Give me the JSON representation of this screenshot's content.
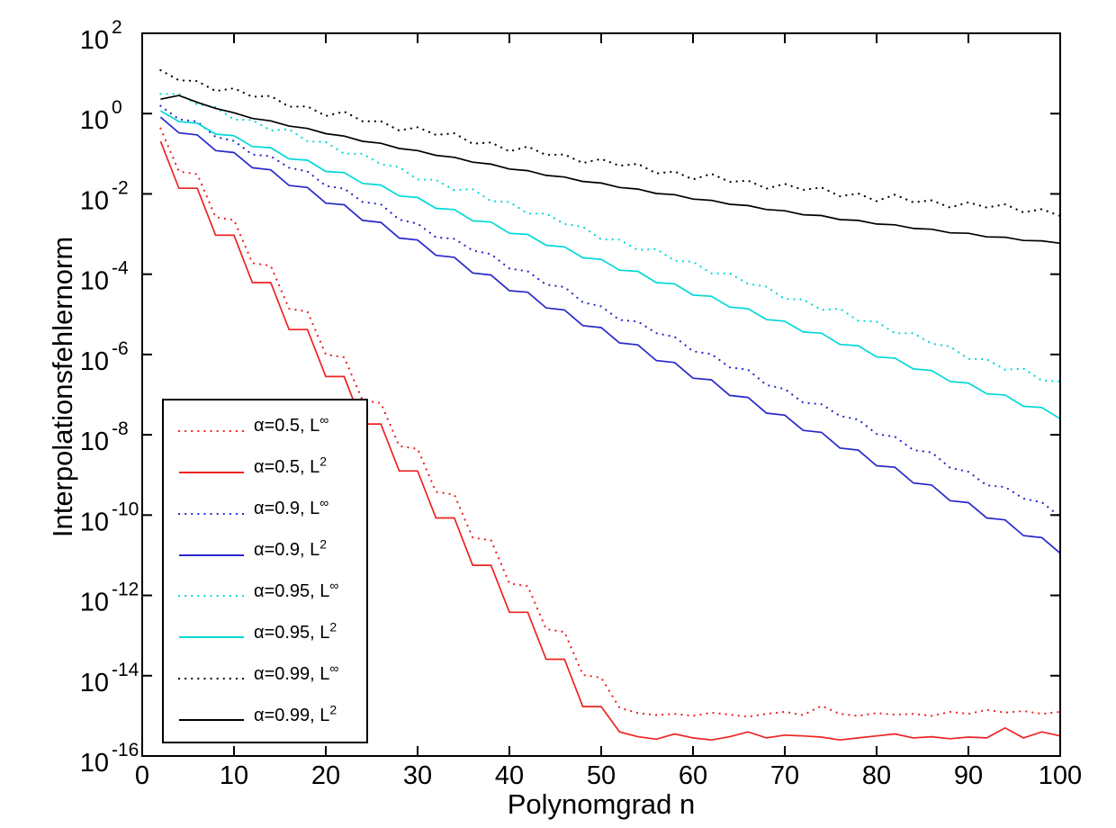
{
  "figure": {
    "background": "#ffffff"
  },
  "axes": {
    "xlabel": "Polynomgrad n",
    "ylabel": "Interpolationsfehlernorm",
    "xlim": [
      0,
      100
    ],
    "x_ticks": [
      0,
      10,
      20,
      30,
      40,
      50,
      60,
      70,
      80,
      90,
      100
    ],
    "y_scale": "log10",
    "ylim_exp": [
      -16,
      2
    ],
    "y_tick_exponents": [
      2,
      0,
      -2,
      -4,
      -6,
      -8,
      -10,
      -12,
      -14,
      -16
    ],
    "tick_base": "10",
    "box": true,
    "grid": false,
    "axis_color": "#000000"
  },
  "legend": {
    "position": "lower-left",
    "border_color": "#000000",
    "background": "#ffffff"
  },
  "chart_data": {
    "type": "line",
    "title": "",
    "xlabel": "Polynomgrad n",
    "ylabel": "Interpolationsfehlernorm",
    "xlim": [
      0,
      100
    ],
    "ylim": [
      1e-16,
      100
    ],
    "y_scale": "log",
    "value_encoding": "log10_of_error_norm",
    "x": [
      2,
      4,
      6,
      8,
      10,
      12,
      14,
      16,
      18,
      20,
      22,
      24,
      26,
      28,
      30,
      32,
      34,
      36,
      38,
      40,
      42,
      44,
      46,
      48,
      50,
      52,
      54,
      56,
      58,
      60,
      62,
      64,
      66,
      68,
      70,
      72,
      74,
      76,
      78,
      80,
      82,
      84,
      86,
      88,
      90,
      92,
      94,
      96,
      98,
      100
    ],
    "series": [
      {
        "name": "alpha-0.5-Linf",
        "alpha": 0.5,
        "norm": "L-infinity",
        "legend_label": "α=0.5, L",
        "legend_sup": "∞",
        "color": "#ee2222",
        "style": "dotted",
        "log10_values": [
          -0.37,
          -1.44,
          -1.51,
          -2.58,
          -2.65,
          -3.72,
          -3.79,
          -4.86,
          -4.93,
          -6.0,
          -6.07,
          -7.14,
          -7.21,
          -8.28,
          -8.35,
          -9.42,
          -9.49,
          -10.56,
          -10.63,
          -11.7,
          -11.77,
          -12.84,
          -12.91,
          -13.98,
          -14.05,
          -14.8,
          -14.93,
          -14.98,
          -14.95,
          -15.0,
          -14.92,
          -14.97,
          -15.02,
          -14.95,
          -14.9,
          -14.98,
          -14.75,
          -14.95,
          -15.0,
          -14.93,
          -14.97,
          -14.95,
          -15.0,
          -14.9,
          -14.95,
          -14.85,
          -14.92,
          -14.88,
          -14.95,
          -14.9
        ]
      },
      {
        "name": "alpha-0.5-L2",
        "alpha": 0.5,
        "norm": "L2",
        "legend_label": "α=0.5, L",
        "legend_sup": "2",
        "color": "#ee2222",
        "style": "solid",
        "log10_values": [
          -0.69,
          -1.86,
          -1.86,
          -3.03,
          -3.03,
          -4.21,
          -4.21,
          -5.38,
          -5.38,
          -6.55,
          -6.55,
          -7.73,
          -7.73,
          -8.9,
          -8.9,
          -10.07,
          -10.07,
          -11.25,
          -11.25,
          -12.42,
          -12.42,
          -13.59,
          -13.59,
          -14.77,
          -14.77,
          -15.4,
          -15.52,
          -15.58,
          -15.45,
          -15.55,
          -15.6,
          -15.52,
          -15.4,
          -15.55,
          -15.48,
          -15.5,
          -15.53,
          -15.6,
          -15.55,
          -15.5,
          -15.45,
          -15.55,
          -15.52,
          -15.57,
          -15.53,
          -15.55,
          -15.3,
          -15.55,
          -15.4,
          -15.5
        ]
      },
      {
        "name": "alpha-0.9-Linf",
        "alpha": 0.9,
        "norm": "L-infinity",
        "legend_label": "α=0.9, L",
        "legend_sup": "∞",
        "color": "#2828cc",
        "style": "dotted",
        "log10_values": [
          0.19,
          -0.14,
          -0.2,
          -0.58,
          -0.68,
          -1.02,
          -1.06,
          -1.35,
          -1.44,
          -1.8,
          -1.87,
          -2.2,
          -2.26,
          -2.64,
          -2.74,
          -3.08,
          -3.12,
          -3.41,
          -3.5,
          -3.86,
          -3.93,
          -4.26,
          -4.32,
          -4.7,
          -4.8,
          -5.14,
          -5.18,
          -5.47,
          -5.56,
          -5.92,
          -5.99,
          -6.32,
          -6.38,
          -6.76,
          -6.86,
          -7.2,
          -7.24,
          -7.53,
          -7.62,
          -7.98,
          -8.05,
          -8.38,
          -8.44,
          -8.82,
          -8.92,
          -9.26,
          -9.3,
          -9.59,
          -9.68,
          -10.04
        ]
      },
      {
        "name": "alpha-0.9-L2",
        "alpha": 0.9,
        "norm": "L2",
        "legend_label": "α=0.9, L",
        "legend_sup": "2",
        "color": "#2828cc",
        "style": "solid",
        "log10_values": [
          -0.09,
          -0.48,
          -0.53,
          -0.92,
          -0.97,
          -1.35,
          -1.4,
          -1.79,
          -1.84,
          -2.23,
          -2.27,
          -2.66,
          -2.71,
          -3.1,
          -3.15,
          -3.53,
          -3.58,
          -3.97,
          -4.02,
          -4.41,
          -4.45,
          -4.84,
          -4.89,
          -5.28,
          -5.33,
          -5.71,
          -5.76,
          -6.15,
          -6.2,
          -6.59,
          -6.63,
          -7.02,
          -7.07,
          -7.46,
          -7.51,
          -7.89,
          -7.94,
          -8.33,
          -8.38,
          -8.77,
          -8.81,
          -9.2,
          -9.25,
          -9.64,
          -9.69,
          -10.07,
          -10.12,
          -10.51,
          -10.56,
          -10.95
        ]
      },
      {
        "name": "alpha-0.95-Linf",
        "alpha": 0.95,
        "norm": "L-infinity",
        "legend_label": "α=0.95, L",
        "legend_sup": "∞",
        "color": "#00d8d8",
        "style": "dotted",
        "log10_values": [
          0.49,
          0.49,
          0.23,
          0.16,
          -0.15,
          -0.16,
          -0.42,
          -0.39,
          -0.69,
          -0.71,
          -1.0,
          -1.0,
          -1.26,
          -1.33,
          -1.64,
          -1.65,
          -1.91,
          -1.88,
          -2.18,
          -2.2,
          -2.49,
          -2.49,
          -2.75,
          -2.82,
          -3.13,
          -3.14,
          -3.4,
          -3.37,
          -3.67,
          -3.69,
          -3.98,
          -3.98,
          -4.24,
          -4.31,
          -4.62,
          -4.63,
          -4.89,
          -4.86,
          -5.16,
          -5.18,
          -5.47,
          -5.47,
          -5.73,
          -5.8,
          -6.11,
          -6.12,
          -6.38,
          -6.35,
          -6.65,
          -6.67
        ]
      },
      {
        "name": "alpha-0.95-L2",
        "alpha": 0.95,
        "norm": "L2",
        "legend_label": "α=0.95, L",
        "legend_sup": "2",
        "color": "#00d8d8",
        "style": "solid",
        "log10_values": [
          0.07,
          -0.2,
          -0.24,
          -0.51,
          -0.55,
          -0.82,
          -0.85,
          -1.13,
          -1.16,
          -1.44,
          -1.47,
          -1.74,
          -1.78,
          -2.05,
          -2.09,
          -2.36,
          -2.39,
          -2.67,
          -2.7,
          -2.98,
          -3.01,
          -3.28,
          -3.32,
          -3.59,
          -3.63,
          -3.9,
          -3.93,
          -4.21,
          -4.24,
          -4.52,
          -4.55,
          -4.82,
          -4.86,
          -5.13,
          -5.17,
          -5.44,
          -5.47,
          -5.75,
          -5.78,
          -6.06,
          -6.09,
          -6.36,
          -6.4,
          -6.67,
          -6.71,
          -6.98,
          -7.01,
          -7.29,
          -7.32,
          -7.6
        ]
      },
      {
        "name": "alpha-0.99-Linf",
        "alpha": 0.99,
        "norm": "L-infinity",
        "legend_label": "α=0.99, L",
        "legend_sup": "∞",
        "color": "#000000",
        "style": "dotted",
        "log10_values": [
          1.08,
          0.83,
          0.81,
          0.56,
          0.63,
          0.42,
          0.44,
          0.17,
          0.18,
          -0.06,
          0.05,
          -0.19,
          -0.19,
          -0.42,
          -0.34,
          -0.53,
          -0.49,
          -0.75,
          -0.72,
          -0.94,
          -0.82,
          -1.03,
          -1.02,
          -1.23,
          -1.13,
          -1.3,
          -1.25,
          -1.49,
          -1.44,
          -1.64,
          -1.5,
          -1.7,
          -1.67,
          -1.87,
          -1.75,
          -1.9,
          -1.84,
          -2.06,
          -1.99,
          -2.18,
          -2.02,
          -2.21,
          -2.16,
          -2.34,
          -2.21,
          -2.34,
          -2.26,
          -2.46,
          -2.38,
          -2.55
        ]
      },
      {
        "name": "alpha-0.99-L2",
        "alpha": 0.99,
        "norm": "L2",
        "legend_label": "α=0.99, L",
        "legend_sup": "2",
        "color": "#000000",
        "style": "solid",
        "log10_values": [
          0.36,
          0.45,
          0.28,
          0.13,
          0.02,
          -0.12,
          -0.18,
          -0.31,
          -0.37,
          -0.5,
          -0.56,
          -0.69,
          -0.74,
          -0.87,
          -0.92,
          -1.04,
          -1.09,
          -1.21,
          -1.26,
          -1.38,
          -1.42,
          -1.54,
          -1.58,
          -1.69,
          -1.73,
          -1.84,
          -1.88,
          -1.99,
          -2.02,
          -2.13,
          -2.16,
          -2.26,
          -2.29,
          -2.39,
          -2.42,
          -2.52,
          -2.54,
          -2.64,
          -2.66,
          -2.75,
          -2.77,
          -2.86,
          -2.88,
          -2.97,
          -2.98,
          -3.07,
          -3.08,
          -3.16,
          -3.17,
          -3.23
        ]
      }
    ]
  }
}
